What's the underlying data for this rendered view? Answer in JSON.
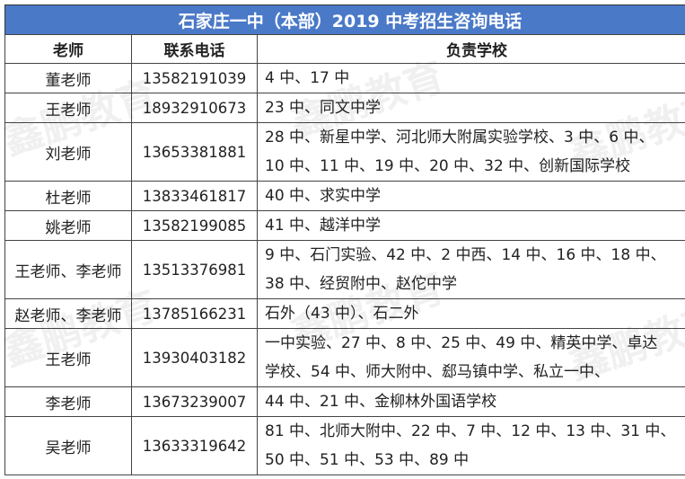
{
  "title": "石家庄一中（本部）2019 中考招生咨询电话",
  "headers": [
    "老师",
    "联系电话",
    "负责学校"
  ],
  "rows": [
    {
      "name": "董老师",
      "phone": "13582191039",
      "schools": [
        "4 中、17 中"
      ]
    },
    {
      "name": "王老师",
      "phone": "18932910673",
      "schools": [
        "23 中、同文中学"
      ]
    },
    {
      "name": "刘老师",
      "phone": "13653381881",
      "schools": [
        "28 中、新星中学、河北师大附属实验学校、3 中、6 中、",
        "10 中、11 中、19 中、20 中、32 中、创新国际学校"
      ]
    },
    {
      "name": "杜老师",
      "phone": "13833461817",
      "schools": [
        "40 中、求实中学"
      ]
    },
    {
      "name": "姚老师",
      "phone": "13582199085",
      "schools": [
        "41 中、越洋中学"
      ]
    },
    {
      "name": "王老师、李老师",
      "phone": "13513376981",
      "schools": [
        "9 中、石门实验、42 中、2 中西、14 中、16 中、18 中、",
        "38 中、经贸附中、赵佗中学"
      ]
    },
    {
      "name": "赵老师、李老师",
      "phone": "13785166231",
      "schools": [
        "石外（43 中）、石二外"
      ]
    },
    {
      "name": "王老师",
      "phone": "13930403182",
      "schools": [
        "一中实验、27 中、8 中、25 中、49 中、精英中学、卓达",
        "学校、54 中、师大附中、郄马镇中学、私立一中、"
      ]
    },
    {
      "name": "李老师",
      "phone": "13673239007",
      "schools": [
        "44 中、21 中、金柳林外国语学校"
      ]
    },
    {
      "name": "吴老师",
      "phone": "13633319642",
      "schools": [
        "81 中、北师大附中、22 中、7 中、12 中、13 中、31 中、",
        "50 中、51 中、53 中、89 中"
      ]
    }
  ],
  "watermark": "鑫鹏教育",
  "colors": {
    "title_bg": "#4a79c8",
    "title_text": "#ffffff"
  }
}
